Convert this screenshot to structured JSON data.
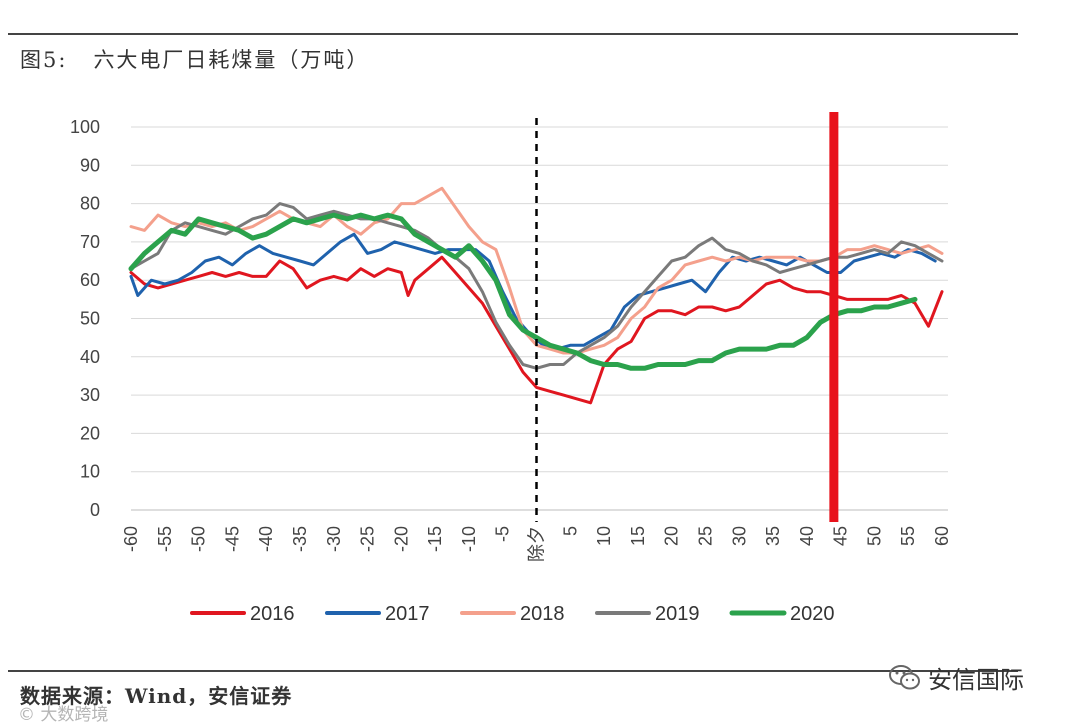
{
  "figure": {
    "number": "图5:",
    "title": "六大电厂日耗煤量（万吨）"
  },
  "source": "数据来源：Wind，安信证券",
  "brand": "安信国际",
  "watermark": "© 大数跨境",
  "chart_data": {
    "type": "line",
    "title": "",
    "xlabel": "",
    "ylabel": "",
    "xlim": [
      -60,
      60
    ],
    "ylim": [
      0,
      100
    ],
    "y_ticks": [
      0,
      10,
      20,
      30,
      40,
      50,
      60,
      70,
      80,
      90,
      100
    ],
    "x_ticks": [
      -60,
      -55,
      -50,
      -45,
      -40,
      -35,
      -30,
      -25,
      -20,
      -15,
      -10,
      -5,
      0,
      5,
      10,
      15,
      20,
      25,
      30,
      35,
      40,
      45,
      50,
      55,
      60
    ],
    "x_tick_labels": [
      "-60",
      "-55",
      "-50",
      "-45",
      "-40",
      "-35",
      "-30",
      "-25",
      "-20",
      "-15",
      "-10",
      "-5",
      "除夕",
      "5",
      "10",
      "15",
      "20",
      "25",
      "30",
      "35",
      "40",
      "45",
      "50",
      "55",
      "60"
    ],
    "grid": "horizontal",
    "legend_position": "bottom",
    "annotations": [
      {
        "type": "vertical-dashed-line",
        "x": 0,
        "color": "#000000"
      },
      {
        "type": "vertical-bar",
        "x": 44,
        "color": "#e8121b"
      }
    ],
    "series": [
      {
        "name": "2016",
        "color": "#e0161f",
        "x": [
          -60,
          -58,
          -56,
          -54,
          -52,
          -50,
          -48,
          -46,
          -44,
          -42,
          -40,
          -38,
          -36,
          -34,
          -32,
          -30,
          -28,
          -26,
          -24,
          -22,
          -20,
          -19,
          -18,
          -16,
          -14,
          -12,
          -10,
          -8,
          -6,
          -4,
          -2,
          0,
          2,
          4,
          6,
          8,
          10,
          12,
          14,
          16,
          18,
          20,
          22,
          24,
          26,
          28,
          30,
          32,
          34,
          36,
          38,
          40,
          42,
          44,
          46,
          48,
          50,
          52,
          54,
          56,
          58,
          60
        ],
        "y": [
          62,
          59,
          58,
          59,
          60,
          61,
          62,
          61,
          62,
          61,
          61,
          65,
          63,
          58,
          60,
          61,
          60,
          63,
          61,
          63,
          62,
          56,
          60,
          63,
          66,
          62,
          58,
          54,
          48,
          42,
          36,
          32,
          31,
          30,
          29,
          28,
          38,
          42,
          44,
          50,
          52,
          52,
          51,
          53,
          53,
          52,
          53,
          56,
          59,
          60,
          58,
          57,
          57,
          56,
          55,
          55,
          55,
          55,
          56,
          54,
          48,
          57
        ]
      },
      {
        "name": "2017",
        "color": "#1f62ad",
        "x": [
          -60,
          -59,
          -57,
          -55,
          -53,
          -51,
          -49,
          -47,
          -45,
          -43,
          -41,
          -39,
          -37,
          -35,
          -33,
          -31,
          -29,
          -27,
          -25,
          -23,
          -21,
          -19,
          -17,
          -15,
          -13,
          -11,
          -9,
          -7,
          -5,
          -3,
          -1,
          1,
          3,
          5,
          7,
          9,
          11,
          13,
          15,
          17,
          19,
          21,
          23,
          25,
          27,
          29,
          31,
          33,
          35,
          37,
          39,
          41,
          43,
          45,
          47,
          49,
          51,
          53,
          55,
          57,
          59
        ],
        "y": [
          61,
          56,
          60,
          59,
          60,
          62,
          65,
          66,
          64,
          67,
          69,
          67,
          66,
          65,
          64,
          67,
          70,
          72,
          67,
          68,
          70,
          69,
          68,
          67,
          68,
          68,
          68,
          65,
          57,
          50,
          46,
          43,
          42,
          43,
          43,
          45,
          47,
          53,
          56,
          57,
          58,
          59,
          60,
          57,
          62,
          66,
          65,
          66,
          65,
          64,
          66,
          64,
          62,
          62,
          65,
          66,
          67,
          66,
          68,
          67,
          65
        ]
      },
      {
        "name": "2018",
        "color": "#f4a08c",
        "x": [
          -60,
          -58,
          -56,
          -54,
          -52,
          -50,
          -48,
          -46,
          -44,
          -42,
          -40,
          -38,
          -36,
          -34,
          -32,
          -30,
          -28,
          -26,
          -24,
          -22,
          -20,
          -18,
          -16,
          -14,
          -12,
          -10,
          -8,
          -6,
          -4,
          -2,
          0,
          2,
          4,
          6,
          8,
          10,
          12,
          14,
          16,
          18,
          20,
          22,
          24,
          26,
          28,
          30,
          32,
          34,
          36,
          38,
          40,
          42,
          44,
          46,
          48,
          50,
          52,
          54,
          56,
          58,
          60
        ],
        "y": [
          74,
          73,
          77,
          75,
          74,
          75,
          74,
          75,
          73,
          74,
          76,
          78,
          76,
          75,
          74,
          77,
          74,
          72,
          75,
          76,
          80,
          80,
          82,
          84,
          79,
          74,
          70,
          68,
          58,
          47,
          43,
          42,
          41,
          41,
          42,
          43,
          45,
          50,
          53,
          58,
          60,
          64,
          65,
          66,
          65,
          66,
          65,
          66,
          66,
          66,
          65,
          65,
          66,
          68,
          68,
          69,
          68,
          67,
          68,
          69,
          67
        ]
      },
      {
        "name": "2019",
        "color": "#7a7a7a",
        "x": [
          -60,
          -58,
          -56,
          -54,
          -52,
          -50,
          -48,
          -46,
          -44,
          -42,
          -40,
          -38,
          -36,
          -34,
          -32,
          -30,
          -28,
          -26,
          -24,
          -22,
          -20,
          -18,
          -16,
          -14,
          -12,
          -10,
          -8,
          -6,
          -4,
          -2,
          0,
          2,
          4,
          6,
          8,
          10,
          12,
          14,
          16,
          18,
          20,
          22,
          24,
          26,
          28,
          30,
          32,
          34,
          36,
          38,
          40,
          42,
          44,
          46,
          48,
          50,
          52,
          54,
          56,
          58,
          60
        ],
        "y": [
          63,
          65,
          67,
          73,
          75,
          74,
          73,
          72,
          74,
          76,
          77,
          80,
          79,
          76,
          77,
          78,
          77,
          76,
          76,
          75,
          74,
          73,
          71,
          68,
          66,
          63,
          57,
          49,
          43,
          38,
          37,
          38,
          38,
          41,
          43,
          45,
          48,
          53,
          57,
          61,
          65,
          66,
          69,
          71,
          68,
          67,
          65,
          64,
          62,
          63,
          64,
          65,
          66,
          66,
          67,
          68,
          67,
          70,
          69,
          67,
          65
        ]
      },
      {
        "name": "2020",
        "color": "#2ba24c",
        "x": [
          -60,
          -58,
          -56,
          -54,
          -52,
          -50,
          -48,
          -46,
          -44,
          -42,
          -40,
          -38,
          -36,
          -34,
          -32,
          -30,
          -28,
          -26,
          -24,
          -22,
          -20,
          -18,
          -16,
          -14,
          -12,
          -10,
          -8,
          -6,
          -4,
          -2,
          0,
          2,
          4,
          6,
          8,
          10,
          12,
          14,
          16,
          18,
          20,
          22,
          24,
          26,
          28,
          30,
          32,
          34,
          36,
          38,
          40,
          42,
          44,
          46,
          48,
          50,
          52,
          54,
          56
        ],
        "y": [
          63,
          67,
          70,
          73,
          72,
          76,
          75,
          74,
          73,
          71,
          72,
          74,
          76,
          75,
          76,
          77,
          76,
          77,
          76,
          77,
          76,
          72,
          70,
          68,
          66,
          69,
          65,
          60,
          51,
          47,
          45,
          43,
          42,
          41,
          39,
          38,
          38,
          37,
          37,
          38,
          38,
          38,
          39,
          39,
          41,
          42,
          42,
          42,
          43,
          43,
          45,
          49,
          51,
          52,
          52,
          53,
          53,
          54,
          55
        ]
      }
    ]
  }
}
